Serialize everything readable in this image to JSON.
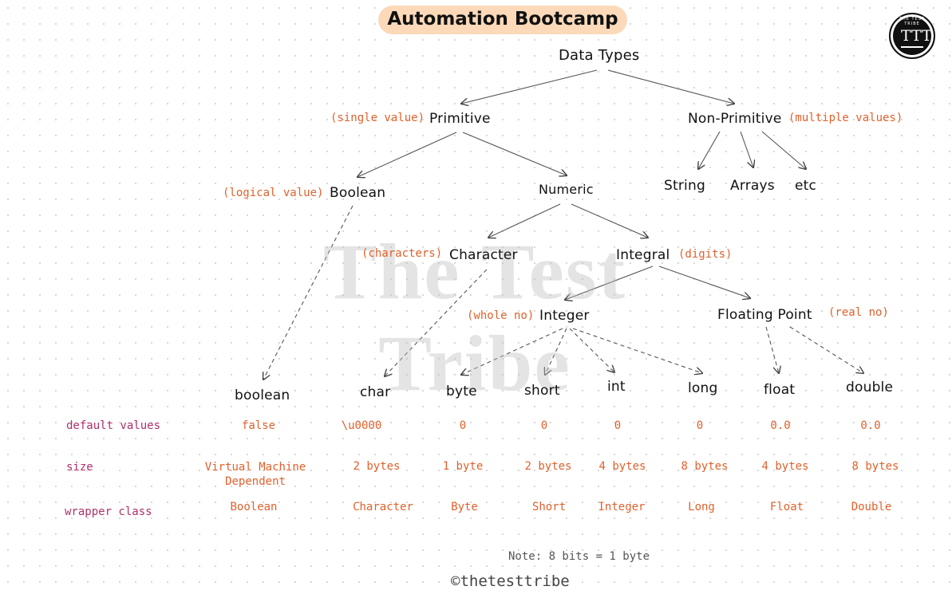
{
  "header": {
    "title": "Automation Bootcamp",
    "logo_text": "THE TEST TRIBE",
    "logo_glyph": "TTT",
    "watermark": "The Test Tribe"
  },
  "tree": {
    "root": "Data Types",
    "primitive": "Primitive",
    "primitive_note": "(single value)",
    "non_primitive": "Non-Primitive",
    "non_primitive_note": "(multiple values)",
    "string": "String",
    "arrays": "Arrays",
    "etc": "etc",
    "boolean": "Boolean",
    "boolean_note": "(logical value)",
    "numeric": "Numeric",
    "character": "Character",
    "character_note": "(characters)",
    "integral": "Integral",
    "integral_note": "(digits)",
    "integer": "Integer",
    "integer_note": "(whole no)",
    "floating_point": "Floating Point",
    "floating_note": "(real no)"
  },
  "types": [
    "boolean",
    "char",
    "byte",
    "short",
    "int",
    "long",
    "float",
    "double"
  ],
  "rows": {
    "default_label": "default values",
    "size_label": "size",
    "wrapper_label": "wrapper class",
    "defaults": [
      "false",
      "\\u0000",
      "0",
      "0",
      "0",
      "0",
      "0.0",
      "0.0"
    ],
    "sizes": [
      "Virtual Machine Dependent",
      "2 bytes",
      "1 byte",
      "2 bytes",
      "4 bytes",
      "8 bytes",
      "4 bytes",
      "8 bytes"
    ],
    "wrappers": [
      "Boolean",
      "Character",
      "Byte",
      "Short",
      "Integer",
      "Long",
      "Float",
      "Double"
    ]
  },
  "footer": {
    "note": "Note: 8 bits = 1 byte",
    "brand": "©thetesttribe"
  }
}
